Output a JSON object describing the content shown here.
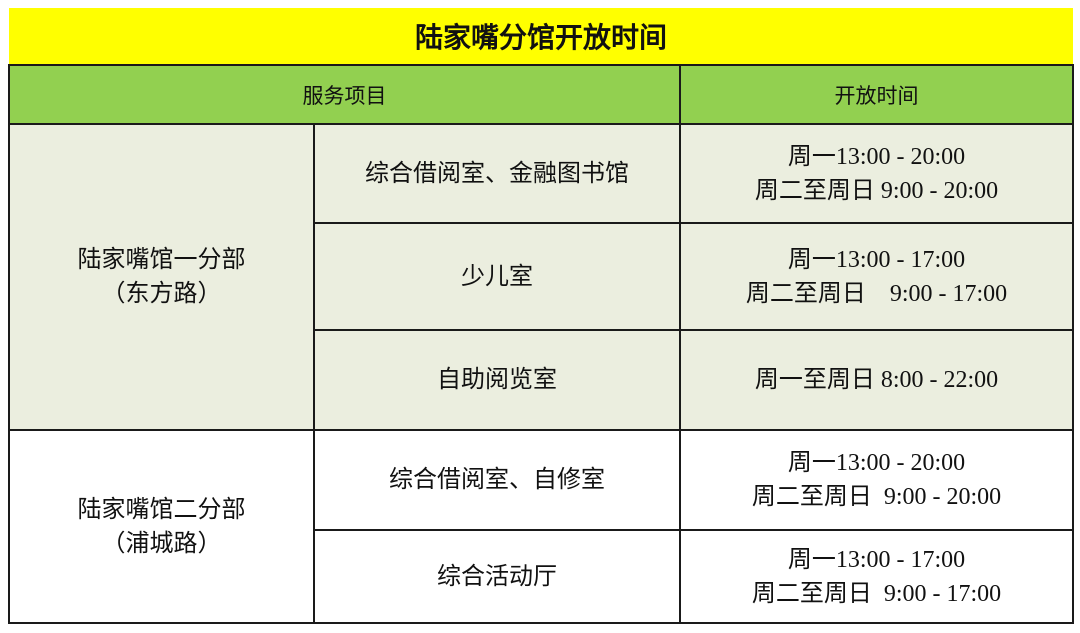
{
  "title": "陆家嘴分馆开放时间",
  "headers": {
    "service": "服务项目",
    "hours": "开放时间"
  },
  "branches": [
    {
      "name": "陆家嘴馆一分部",
      "road": "（东方路）"
    },
    {
      "name": "陆家嘴馆二分部",
      "road": "（浦城路）"
    }
  ],
  "rows": [
    {
      "room": "综合借阅室、金融图书馆",
      "hours": [
        "周一13:00 - 20:00",
        "周二至周日 9:00 - 20:00"
      ]
    },
    {
      "room": "少儿室",
      "hours": [
        "周一13:00 - 17:00",
        "周二至周日    9:00 - 17:00"
      ]
    },
    {
      "room": "自助阅览室",
      "hours": [
        "周一至周日 8:00 - 22:00"
      ]
    },
    {
      "room": "综合借阅室、自修室",
      "hours": [
        "周一13:00 - 20:00",
        "周二至周日  9:00 - 20:00"
      ]
    },
    {
      "room": "综合活动厅",
      "hours": [
        "周一13:00 - 17:00",
        "周二至周日  9:00 - 17:00"
      ]
    }
  ],
  "colors": {
    "title_bg": "#ffff00",
    "header_bg": "#92d050",
    "branch1_bg": "#ebeedf",
    "branch2_bg": "#ffffff"
  }
}
